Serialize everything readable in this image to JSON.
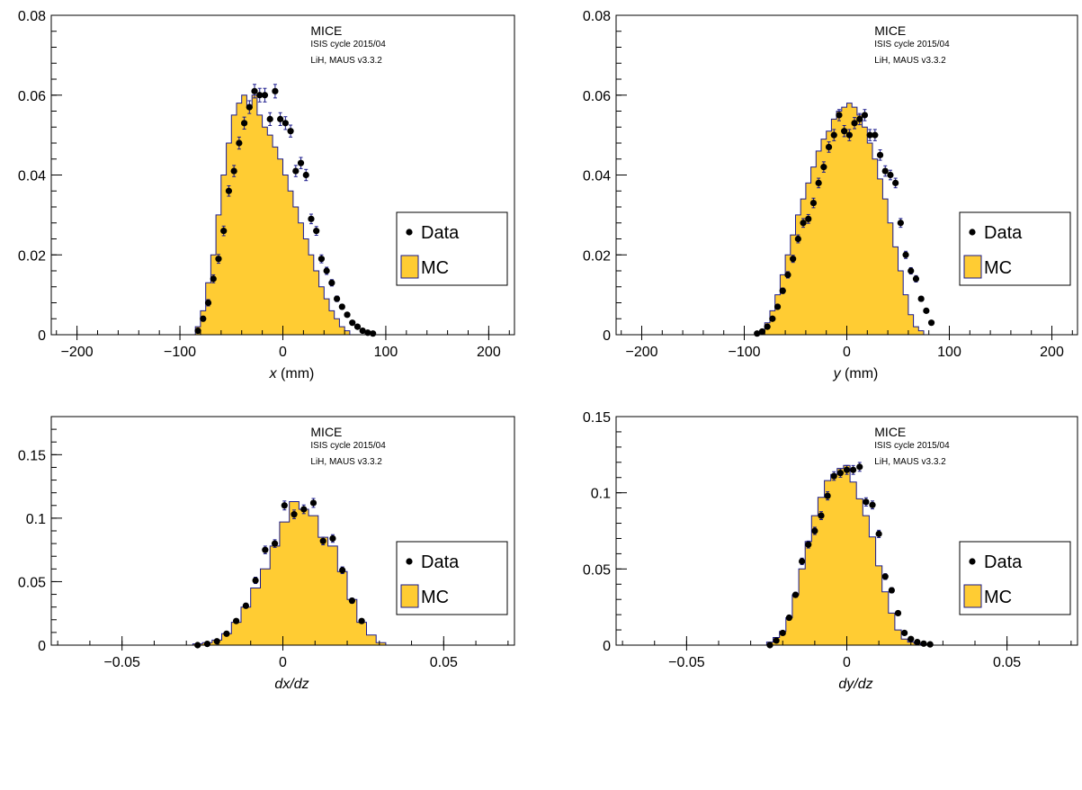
{
  "colors": {
    "mc_fill": "#ffcc33",
    "mc_line": "#1a1a8c",
    "data_marker": "#000000",
    "error_bar": "#1a1a8c",
    "frame": "#000000"
  },
  "chart_data": [
    {
      "type": "histogram",
      "annotation": {
        "title": "MICE",
        "line1": "ISIS cycle 2015/04",
        "line2": "LiH, MAUS v3.3.2"
      },
      "xlabel": {
        "var": "x",
        "unit": " (mm)"
      },
      "ylabel": "",
      "xlim": [
        -225,
        225
      ],
      "ylim": [
        0,
        0.08
      ],
      "xticks": [
        -200,
        -100,
        0,
        100,
        200
      ],
      "xtick_labels": [
        "−200",
        "−100",
        "0",
        "100",
        "200"
      ],
      "yticks": [
        0,
        0.02,
        0.04,
        0.06,
        0.08
      ],
      "ytick_labels": [
        "0",
        "0.02",
        "0.04",
        "0.06",
        "0.08"
      ],
      "legend": {
        "position": "right",
        "entries": [
          "Data",
          "MC"
        ]
      },
      "mc": {
        "bin_start": -90,
        "bin_width": 5,
        "values": [
          0,
          0.002,
          0.006,
          0.013,
          0.02,
          0.03,
          0.04,
          0.048,
          0.055,
          0.058,
          0.06,
          0.057,
          0.06,
          0.055,
          0.052,
          0.05,
          0.047,
          0.044,
          0.04,
          0.036,
          0.032,
          0.028,
          0.024,
          0.02,
          0.016,
          0.012,
          0.009,
          0.006,
          0.004,
          0.002,
          0.001,
          0
        ]
      },
      "data": {
        "x": [
          -82.5,
          -77.5,
          -72.5,
          -67.5,
          -62.5,
          -57.5,
          -52.5,
          -47.5,
          -42.5,
          -37.5,
          -32.5,
          -27.5,
          -22.5,
          -17.5,
          -12.5,
          -7.5,
          -2.5,
          2.5,
          7.5,
          12.5,
          17.5,
          22.5,
          27.5,
          32.5,
          37.5,
          42.5,
          47.5,
          52.5,
          57.5,
          62.5,
          67.5,
          72.5,
          77.5,
          82.5,
          87.5
        ],
        "y": [
          0.001,
          0.004,
          0.008,
          0.014,
          0.019,
          0.026,
          0.036,
          0.041,
          0.048,
          0.053,
          0.057,
          0.061,
          0.06,
          0.06,
          0.054,
          0.061,
          0.054,
          0.053,
          0.051,
          0.041,
          0.043,
          0.04,
          0.029,
          0.026,
          0.019,
          0.016,
          0.013,
          0.009,
          0.007,
          0.005,
          0.003,
          0.002,
          0.001,
          0.0005,
          0.0003
        ],
        "err": [
          0.0004,
          0.0006,
          0.0008,
          0.001,
          0.0011,
          0.0012,
          0.0013,
          0.0014,
          0.0015,
          0.0015,
          0.0016,
          0.0017,
          0.0017,
          0.0017,
          0.0016,
          0.0017,
          0.0016,
          0.0016,
          0.0015,
          0.0014,
          0.0014,
          0.0014,
          0.0012,
          0.0011,
          0.001,
          0.0009,
          0.0008,
          0.0007,
          0.0006,
          0.0005,
          0.0004,
          0.0003,
          0.0002,
          0.0002,
          0.0002
        ]
      }
    },
    {
      "type": "histogram",
      "annotation": {
        "title": "MICE",
        "line1": "ISIS cycle 2015/04",
        "line2": "LiH, MAUS v3.3.2"
      },
      "xlabel": {
        "var": "y",
        "unit": " (mm)"
      },
      "ylabel": "",
      "xlim": [
        -225,
        225
      ],
      "ylim": [
        0,
        0.08
      ],
      "xticks": [
        -200,
        -100,
        0,
        100,
        200
      ],
      "xtick_labels": [
        "−200",
        "−100",
        "0",
        "100",
        "200"
      ],
      "yticks": [
        0,
        0.02,
        0.04,
        0.06,
        0.08
      ],
      "ytick_labels": [
        "0",
        "0.02",
        "0.04",
        "0.06",
        "0.08"
      ],
      "legend": {
        "position": "right",
        "entries": [
          "Data",
          "MC"
        ]
      },
      "mc": {
        "bin_start": -90,
        "bin_width": 5,
        "values": [
          0,
          0.001,
          0.003,
          0.006,
          0.01,
          0.015,
          0.02,
          0.025,
          0.03,
          0.034,
          0.038,
          0.042,
          0.046,
          0.049,
          0.051,
          0.054,
          0.056,
          0.057,
          0.058,
          0.057,
          0.055,
          0.052,
          0.048,
          0.044,
          0.039,
          0.034,
          0.028,
          0.022,
          0.016,
          0.01,
          0.005,
          0.002,
          0.001,
          0,
          0,
          0
        ]
      },
      "data": {
        "x": [
          -87.5,
          -82.5,
          -77.5,
          -72.5,
          -67.5,
          -62.5,
          -57.5,
          -52.5,
          -47.5,
          -42.5,
          -37.5,
          -32.5,
          -27.5,
          -22.5,
          -17.5,
          -12.5,
          -7.5,
          -2.5,
          2.5,
          7.5,
          12.5,
          17.5,
          22.5,
          27.5,
          32.5,
          37.5,
          42.5,
          47.5,
          52.5,
          57.5,
          62.5,
          67.5,
          72.5,
          77.5,
          82.5
        ],
        "y": [
          0.0003,
          0.0008,
          0.002,
          0.004,
          0.007,
          0.011,
          0.015,
          0.019,
          0.024,
          0.028,
          0.029,
          0.033,
          0.038,
          0.042,
          0.047,
          0.05,
          0.055,
          0.051,
          0.05,
          0.053,
          0.054,
          0.055,
          0.05,
          0.05,
          0.045,
          0.041,
          0.04,
          0.038,
          0.028,
          0.02,
          0.016,
          0.014,
          0.009,
          0.006,
          0.003
        ],
        "err": [
          0.0001,
          0.0002,
          0.0003,
          0.0004,
          0.0006,
          0.0007,
          0.0008,
          0.0009,
          0.001,
          0.0011,
          0.0011,
          0.0012,
          0.0012,
          0.0013,
          0.0013,
          0.0014,
          0.0014,
          0.0014,
          0.0014,
          0.0014,
          0.0014,
          0.0014,
          0.0014,
          0.0014,
          0.0013,
          0.0013,
          0.0012,
          0.0012,
          0.0011,
          0.0009,
          0.0008,
          0.0008,
          0.0006,
          0.0005,
          0.0004
        ]
      }
    },
    {
      "type": "histogram",
      "annotation": {
        "title": "MICE",
        "line1": "ISIS cycle 2015/04",
        "line2": "LiH, MAUS v3.3.2"
      },
      "xlabel": {
        "var": "dx/dz",
        "unit": ""
      },
      "ylabel": "",
      "xlim": [
        -0.072,
        0.072
      ],
      "ylim": [
        0,
        0.18
      ],
      "xticks": [
        -0.05,
        0,
        0.05
      ],
      "xtick_labels": [
        "−0.05",
        "0",
        "0.05"
      ],
      "yticks": [
        0,
        0.05,
        0.1,
        0.15
      ],
      "ytick_labels": [
        "0",
        "0.05",
        "0.1",
        "0.15"
      ],
      "legend": {
        "position": "right",
        "entries": [
          "Data",
          "MC"
        ]
      },
      "mc": {
        "bin_start": -0.028,
        "bin_width": 0.003,
        "values": [
          0.001,
          0.002,
          0.004,
          0.009,
          0.018,
          0.03,
          0.045,
          0.06,
          0.078,
          0.097,
          0.113,
          0.107,
          0.102,
          0.085,
          0.078,
          0.058,
          0.036,
          0.018,
          0.008,
          0.002
        ]
      },
      "data": {
        "x": [
          -0.0265,
          -0.0235,
          -0.0205,
          -0.0175,
          -0.0145,
          -0.0115,
          -0.0085,
          -0.0055,
          -0.0025,
          0.0005,
          0.0035,
          0.0065,
          0.0095,
          0.0125,
          0.0155,
          0.0185,
          0.0215,
          0.0245
        ],
        "y": [
          0,
          0.001,
          0.003,
          0.009,
          0.019,
          0.031,
          0.051,
          0.075,
          0.08,
          0.11,
          0.103,
          0.107,
          0.112,
          0.082,
          0.084,
          0.059,
          0.035,
          0.019
        ],
        "err": [
          0.0004,
          0.0005,
          0.0008,
          0.0012,
          0.0016,
          0.002,
          0.0025,
          0.003,
          0.003,
          0.0035,
          0.0034,
          0.0034,
          0.0035,
          0.003,
          0.003,
          0.0026,
          0.002,
          0.0015
        ]
      }
    },
    {
      "type": "histogram",
      "annotation": {
        "title": "MICE",
        "line1": "ISIS cycle 2015/04",
        "line2": "LiH, MAUS v3.3.2"
      },
      "xlabel": {
        "var": "dy/dz",
        "unit": ""
      },
      "ylabel": "",
      "xlim": [
        -0.072,
        0.072
      ],
      "ylim": [
        0,
        0.15
      ],
      "xticks": [
        -0.05,
        0,
        0.05
      ],
      "xtick_labels": [
        "−0.05",
        "0",
        "0.05"
      ],
      "yticks": [
        0,
        0.05,
        0.1,
        0.15
      ],
      "ytick_labels": [
        "0",
        "0.05",
        "0.1",
        "0.15"
      ],
      "legend": {
        "position": "right",
        "entries": [
          "Data",
          "MC"
        ]
      },
      "mc": {
        "bin_start": -0.025,
        "bin_width": 0.002,
        "values": [
          0.002,
          0.005,
          0.009,
          0.018,
          0.033,
          0.05,
          0.068,
          0.085,
          0.097,
          0.108,
          0.112,
          0.116,
          0.118,
          0.107,
          0.096,
          0.085,
          0.071,
          0.052,
          0.035,
          0.021,
          0.01,
          0.004,
          0.002,
          0.001,
          0
        ]
      },
      "data": {
        "x": [
          -0.024,
          -0.022,
          -0.02,
          -0.018,
          -0.016,
          -0.014,
          -0.012,
          -0.01,
          -0.008,
          -0.006,
          -0.004,
          -0.002,
          0,
          0.002,
          0.004,
          0.006,
          0.008,
          0.01,
          0.012,
          0.014,
          0.016,
          0.018,
          0.02,
          0.022,
          0.024,
          0.026
        ],
        "y": [
          0,
          0.003,
          0.008,
          0.018,
          0.033,
          0.055,
          0.066,
          0.075,
          0.085,
          0.098,
          0.111,
          0.113,
          0.115,
          0.115,
          0.117,
          0.094,
          0.092,
          0.073,
          0.045,
          0.036,
          0.021,
          0.008,
          0.004,
          0.002,
          0.001,
          0.0005
        ],
        "err": [
          0.0003,
          0.0006,
          0.0009,
          0.0013,
          0.0017,
          0.0021,
          0.0023,
          0.0024,
          0.0026,
          0.0027,
          0.0028,
          0.0028,
          0.0029,
          0.0029,
          0.0029,
          0.0027,
          0.0026,
          0.0024,
          0.0019,
          0.0017,
          0.0013,
          0.0009,
          0.0006,
          0.0004,
          0.0003,
          0.0002
        ]
      }
    }
  ]
}
